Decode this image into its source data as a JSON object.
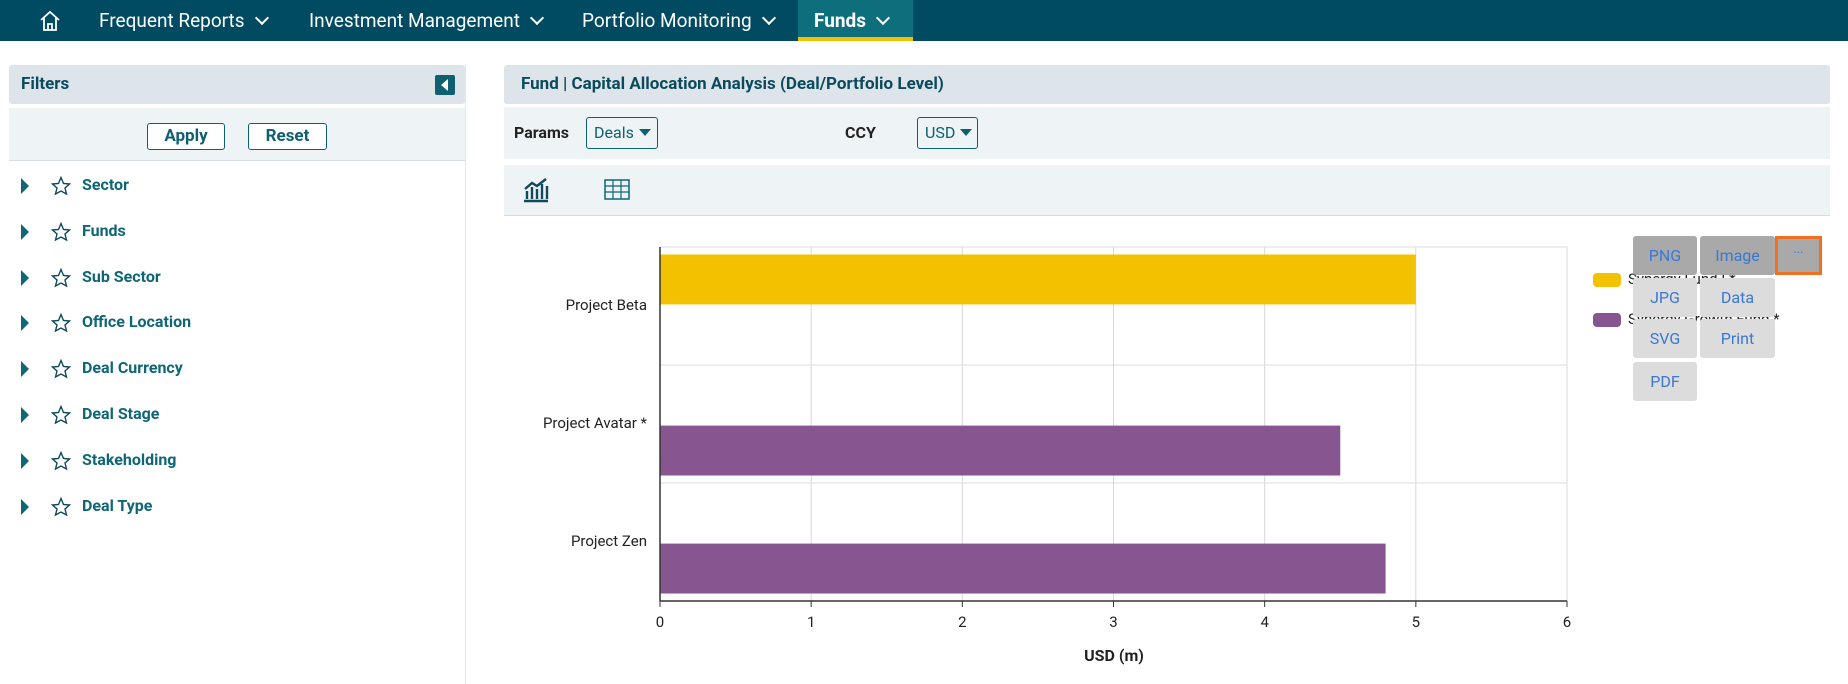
{
  "nav": {
    "items": [
      "Frequent Reports",
      "Investment Management",
      "Portfolio Monitoring",
      "Funds"
    ]
  },
  "filters": {
    "title": "Filters",
    "apply": "Apply",
    "reset": "Reset",
    "items": [
      "Sector",
      "Funds",
      "Sub Sector",
      "Office Location",
      "Deal Currency",
      "Deal Stage",
      "Stakeholding",
      "Deal Type"
    ]
  },
  "report": {
    "title": "Fund | Capital Allocation Analysis (Deal/Portfolio Level)",
    "params_label": "Params",
    "params_value": "Deals",
    "ccy_label": "CCY",
    "ccy_value": "USD"
  },
  "export_menu": {
    "items": [
      "PNG",
      "Image",
      "···",
      "JPG",
      "Data",
      "SVG",
      "Print",
      "PDF"
    ]
  },
  "chart_data": {
    "type": "hbar",
    "x_label": "USD (m)",
    "categories": [
      "Project Beta",
      "Project Avatar *",
      "Project Zen"
    ],
    "series": [
      {
        "name": "Synergy Fund I *",
        "color": "#f2c200",
        "values": [
          5.0,
          0,
          0
        ]
      },
      {
        "name": "Synergy Growth Fund *",
        "color": "#875590",
        "values": [
          0,
          4.5,
          4.8
        ]
      }
    ],
    "xlim": [
      0,
      6
    ],
    "xticks": [
      0,
      1,
      2,
      3,
      4,
      5,
      6
    ],
    "grid": true
  }
}
